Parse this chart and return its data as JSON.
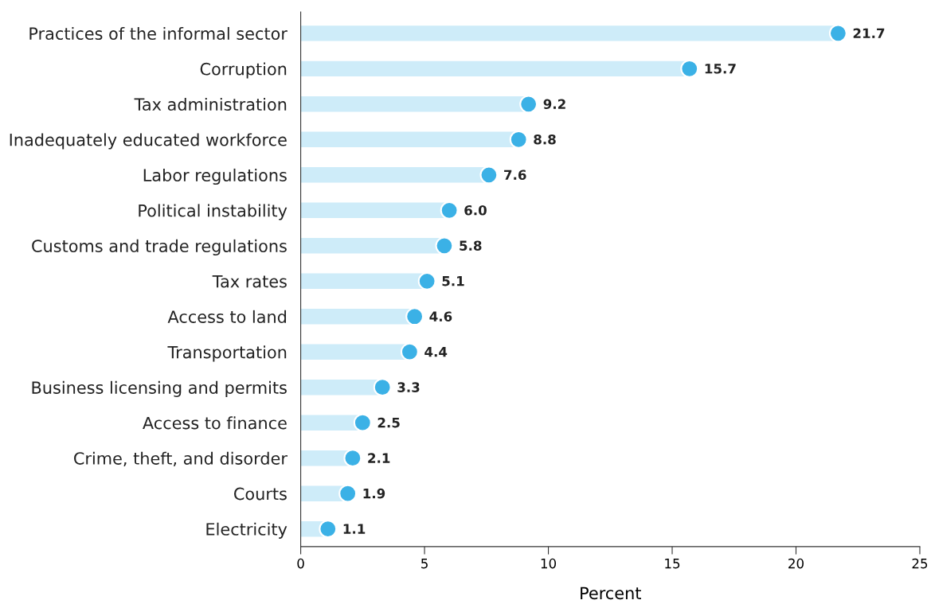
{
  "chart_data": {
    "type": "lollipop",
    "orientation": "horizontal",
    "xlabel": "Percent",
    "categories": [
      "Practices of the informal sector",
      "Corruption",
      "Tax administration",
      "Inadequately educated workforce",
      "Labor regulations",
      "Political instability",
      "Customs and trade regulations",
      "Tax rates",
      "Access to land",
      "Transportation",
      "Business licensing and permits",
      "Access to finance",
      "Crime, theft, and disorder",
      "Courts",
      "Electricity"
    ],
    "series": [
      {
        "color": "#3bb1e6",
        "values": [
          21.7,
          15.7,
          9.2,
          8.8,
          7.6,
          6.0,
          5.8,
          5.1,
          4.6,
          4.4,
          3.3,
          2.5,
          2.1,
          1.9,
          1.1
        ]
      }
    ],
    "value_labels": [
      "21.7",
      "15.7",
      "9.2",
      "8.8",
      "7.6",
      "6.0",
      "5.8",
      "5.1",
      "4.6",
      "4.4",
      "3.3",
      "2.5",
      "2.1",
      "1.9",
      "1.1"
    ],
    "xlim": [
      0,
      25
    ],
    "xticks": [
      0,
      5,
      10,
      15,
      20,
      25
    ],
    "grid": false,
    "legend": false,
    "marker": "circle"
  }
}
